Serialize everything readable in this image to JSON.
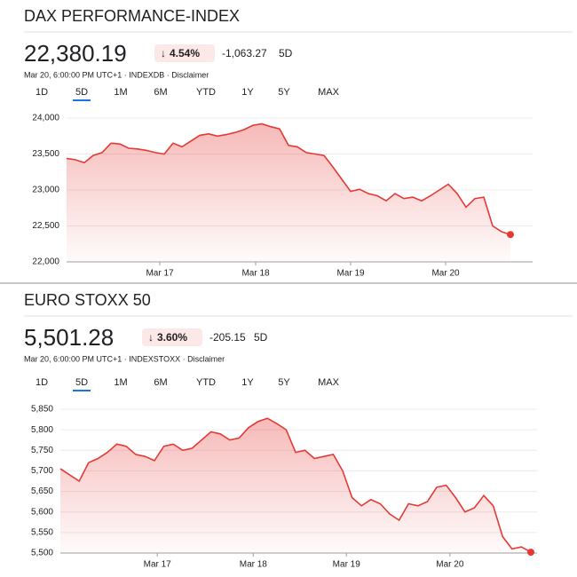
{
  "chart_data": [
    {
      "type": "line",
      "title": "DAX PERFORMANCE-INDEX",
      "price": "22,380.19",
      "change_pct": "4.54%",
      "change_abs": "-1,063.27",
      "period": "5D",
      "timestamp": "Mar 20, 6:00:00 PM UTC+1 · INDEXDB · Disclaimer",
      "tabs": [
        "1D",
        "5D",
        "1M",
        "6M",
        "YTD",
        "1Y",
        "5Y",
        "MAX"
      ],
      "active_tab": 1,
      "color": "#e53935",
      "grid": true,
      "x": [
        0,
        1,
        2,
        3,
        4,
        5,
        6,
        7,
        8,
        9,
        10,
        11,
        12,
        13,
        14,
        15,
        16,
        17,
        18,
        19,
        20,
        21,
        22,
        23,
        24,
        25,
        26,
        27,
        28,
        29,
        30,
        31,
        32,
        33,
        34,
        35,
        36,
        37,
        38,
        39,
        40,
        41,
        42,
        43,
        44,
        45,
        46,
        47,
        48,
        49,
        50
      ],
      "values": [
        23440,
        23420,
        23380,
        23480,
        23520,
        23650,
        23640,
        23580,
        23570,
        23550,
        23520,
        23500,
        23650,
        23600,
        23680,
        23760,
        23780,
        23750,
        23770,
        23800,
        23840,
        23900,
        23920,
        23880,
        23850,
        23620,
        23600,
        23520,
        23500,
        23480,
        23320,
        23150,
        22980,
        23010,
        22950,
        22920,
        22850,
        22950,
        22880,
        22900,
        22850,
        22920,
        23000,
        23080,
        22950,
        22760,
        22880,
        22900,
        22500,
        22420,
        22380
      ],
      "xlim": [
        0,
        52.5
      ],
      "xticks": [
        {
          "value": 10.5,
          "label": "Mar 17"
        },
        {
          "value": 21.3,
          "label": "Mar 18"
        },
        {
          "value": 32,
          "label": "Mar 19"
        },
        {
          "value": 42.7,
          "label": "Mar 20"
        }
      ],
      "ylim": [
        22000,
        24000
      ],
      "yticks": [
        {
          "value": 22000,
          "label": "22,000"
        },
        {
          "value": 22500,
          "label": "22,500"
        },
        {
          "value": 23000,
          "label": "23,000"
        },
        {
          "value": 23500,
          "label": "23,500"
        },
        {
          "value": 24000,
          "label": "24,000"
        }
      ]
    },
    {
      "type": "line",
      "title": "EURO STOXX 50",
      "price": "5,501.28",
      "change_pct": "3.60%",
      "change_abs": "-205.15",
      "period": "5D",
      "timestamp": "Mar 20, 6:00:00 PM UTC+1 · INDEXSTOXX · Disclaimer",
      "tabs": [
        "1D",
        "5D",
        "1M",
        "6M",
        "YTD",
        "1Y",
        "5Y",
        "MAX"
      ],
      "active_tab": 1,
      "color": "#e53935",
      "grid": true,
      "x": [
        0,
        1,
        2,
        3,
        4,
        5,
        6,
        7,
        8,
        9,
        10,
        11,
        12,
        13,
        14,
        15,
        16,
        17,
        18,
        19,
        20,
        21,
        22,
        23,
        24,
        25,
        26,
        27,
        28,
        29,
        30,
        31,
        32,
        33,
        34,
        35,
        36,
        37,
        38,
        39,
        40,
        41,
        42,
        43,
        44,
        45,
        46,
        47,
        48,
        49,
        50
      ],
      "values": [
        5705,
        5690,
        5675,
        5720,
        5730,
        5745,
        5765,
        5760,
        5740,
        5735,
        5725,
        5760,
        5765,
        5750,
        5755,
        5775,
        5795,
        5790,
        5775,
        5780,
        5805,
        5820,
        5828,
        5815,
        5800,
        5745,
        5750,
        5730,
        5735,
        5740,
        5700,
        5635,
        5615,
        5630,
        5620,
        5595,
        5580,
        5620,
        5615,
        5625,
        5660,
        5665,
        5635,
        5600,
        5610,
        5640,
        5615,
        5540,
        5510,
        5515,
        5502
      ],
      "xlim": [
        0,
        50.66
      ],
      "xticks": [
        {
          "value": 10.3,
          "label": "Mar 17"
        },
        {
          "value": 20.5,
          "label": "Mar 18"
        },
        {
          "value": 30.4,
          "label": "Mar 19"
        },
        {
          "value": 41.4,
          "label": "Mar 20"
        }
      ],
      "ylim": [
        5500,
        5850
      ],
      "yticks": [
        {
          "value": 5500,
          "label": "5,500"
        },
        {
          "value": 5550,
          "label": "5,550"
        },
        {
          "value": 5600,
          "label": "5,600"
        },
        {
          "value": 5650,
          "label": "5,650"
        },
        {
          "value": 5700,
          "label": "5,700"
        },
        {
          "value": 5750,
          "label": "5,750"
        },
        {
          "value": 5800,
          "label": "5,800"
        },
        {
          "value": 5850,
          "label": "5,850"
        }
      ]
    }
  ]
}
